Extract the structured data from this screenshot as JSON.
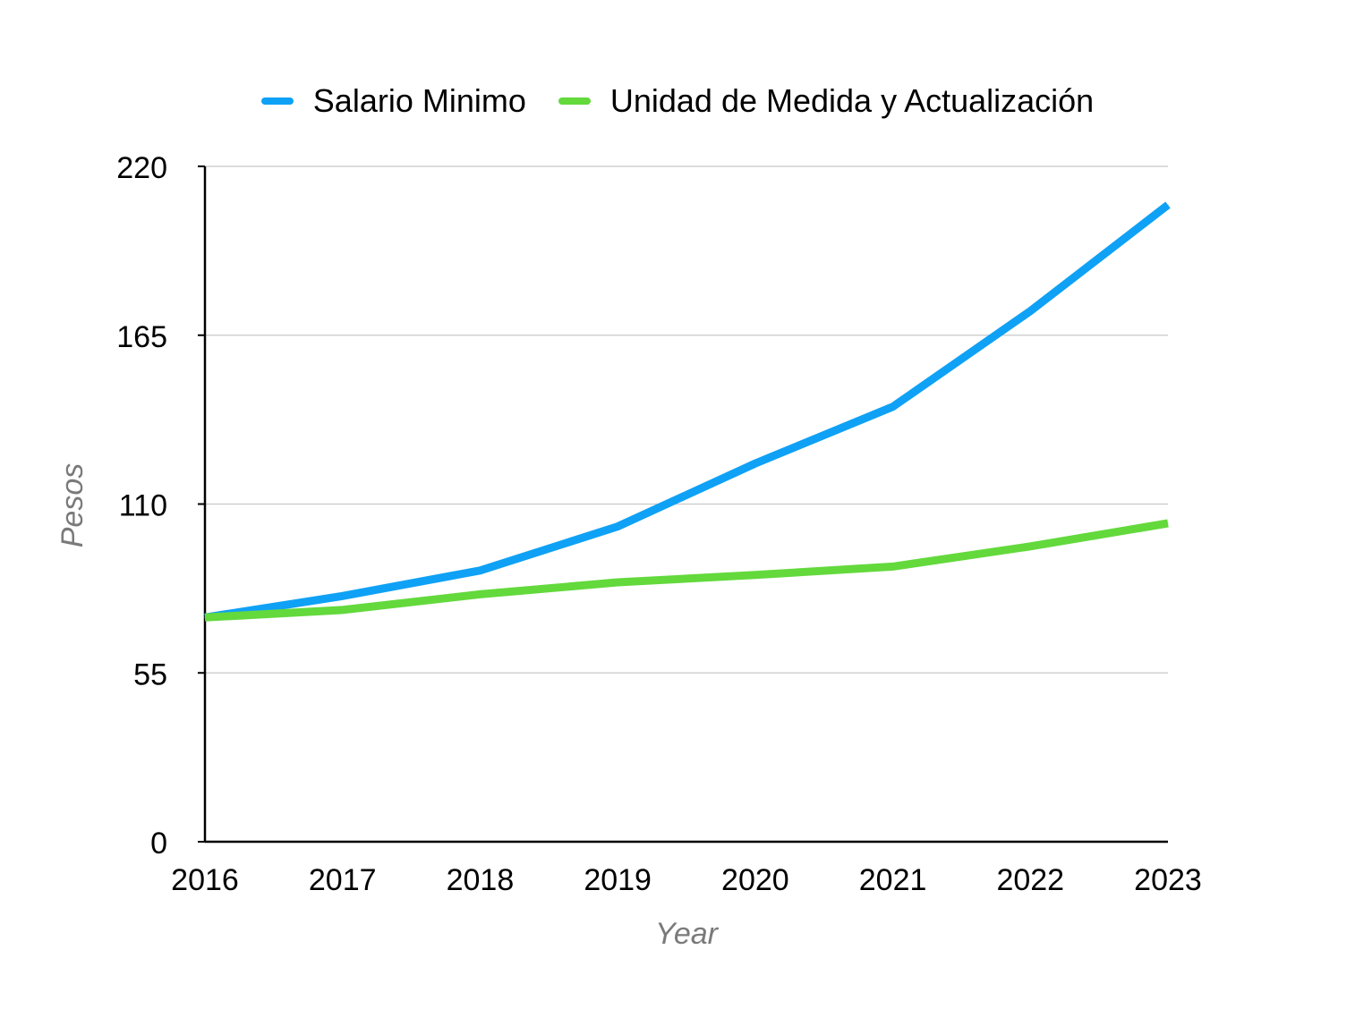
{
  "chart_data": {
    "type": "line",
    "title": "",
    "xlabel": "Year",
    "ylabel": "Pesos",
    "x": [
      "2016",
      "2017",
      "2018",
      "2019",
      "2020",
      "2021",
      "2022",
      "2023"
    ],
    "yticks": [
      "0",
      "55",
      "110",
      "165",
      "220"
    ],
    "ylim": [
      0,
      220
    ],
    "grid": true,
    "legend_position": "top-center",
    "series": [
      {
        "name": "Salario Minimo",
        "color": "#0fa1f5",
        "values": [
          73.04,
          80.04,
          88.36,
          102.68,
          123.22,
          141.7,
          172.87,
          207.44
        ]
      },
      {
        "name": "Unidad de Medida y Actualización",
        "color": "#63d93c",
        "values": [
          73.04,
          75.49,
          80.6,
          84.49,
          86.88,
          89.62,
          96.22,
          103.74
        ]
      }
    ]
  }
}
